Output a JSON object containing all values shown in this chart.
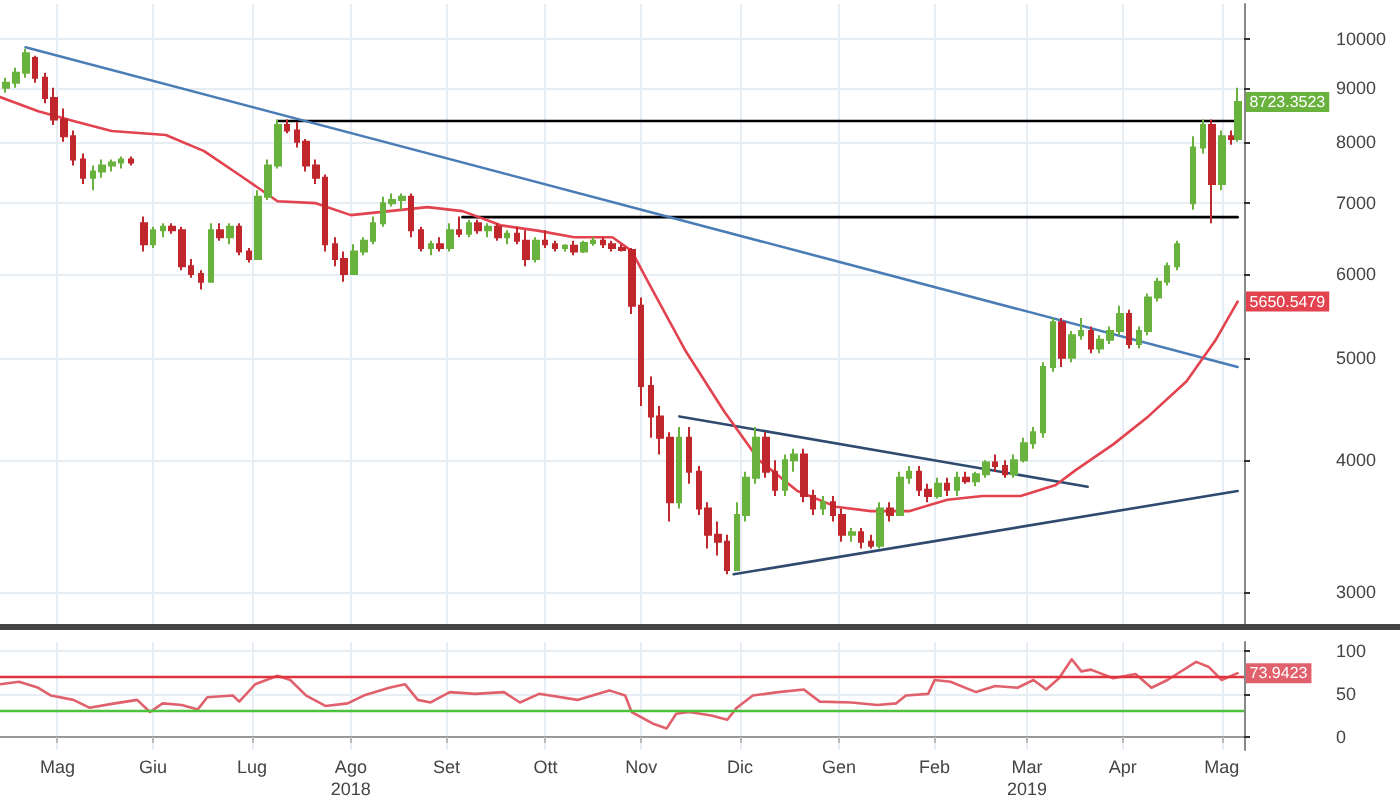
{
  "chart_data": [
    {
      "type": "candlestick",
      "x": [
        "2018-04-30",
        "2018-05-03",
        "2018-05-06",
        "2018-05-09",
        "2018-05-12",
        "2018-05-15",
        "2018-05-18",
        "2018-05-21",
        "2018-05-24",
        "2018-05-27",
        "2018-05-30",
        "2018-06-02",
        "2018-06-05",
        "2018-06-08",
        "2018-06-12",
        "2018-06-15",
        "2018-06-18",
        "2018-06-21",
        "2018-06-24",
        "2018-06-27",
        "2018-06-30",
        "2018-07-03",
        "2018-07-06",
        "2018-07-09",
        "2018-07-12",
        "2018-07-15",
        "2018-07-18",
        "2018-07-21",
        "2018-07-24",
        "2018-07-27",
        "2018-07-30",
        "2018-08-02",
        "2018-08-05",
        "2018-08-08",
        "2018-08-11",
        "2018-08-14",
        "2018-08-17",
        "2018-08-20",
        "2018-08-23",
        "2018-08-26",
        "2018-08-29",
        "2018-09-01",
        "2018-09-04",
        "2018-09-07",
        "2018-09-10",
        "2018-09-13",
        "2018-09-16",
        "2018-09-19",
        "2018-09-22",
        "2018-09-25",
        "2018-09-28",
        "2018-10-01",
        "2018-10-04",
        "2018-10-07",
        "2018-10-10",
        "2018-10-13",
        "2018-10-16",
        "2018-10-19",
        "2018-10-22",
        "2018-10-25",
        "2018-10-28",
        "2018-10-31",
        "2018-11-03",
        "2018-11-06",
        "2018-11-09",
        "2018-11-12",
        "2018-11-15",
        "2018-11-18",
        "2018-11-21",
        "2018-11-24",
        "2018-11-27",
        "2018-11-30",
        "2018-12-03",
        "2018-12-06",
        "2018-12-09",
        "2018-12-12",
        "2018-12-15",
        "2018-12-18",
        "2018-12-21",
        "2018-12-24",
        "2018-12-27",
        "2018-12-30",
        "2019-01-02",
        "2019-01-05",
        "2019-01-08",
        "2019-01-11",
        "2019-01-14",
        "2019-01-17",
        "2019-01-20",
        "2019-01-23",
        "2019-01-26",
        "2019-01-29",
        "2019-02-01",
        "2019-02-04",
        "2019-02-07",
        "2019-02-10",
        "2019-02-13",
        "2019-02-16",
        "2019-02-19",
        "2019-02-22",
        "2019-02-25",
        "2019-02-28",
        "2019-03-03",
        "2019-03-06",
        "2019-03-09",
        "2019-03-12",
        "2019-03-15",
        "2019-03-18",
        "2019-03-21",
        "2019-03-24",
        "2019-03-27",
        "2019-03-30",
        "2019-04-02",
        "2019-04-05",
        "2019-04-08",
        "2019-04-11",
        "2019-04-14",
        "2019-04-17",
        "2019-04-20",
        "2019-04-23",
        "2019-04-26",
        "2019-04-29",
        "2019-05-02",
        "2019-05-07",
        "2019-05-10",
        "2019-05-13",
        "2019-05-16",
        "2019-05-19",
        "2019-05-21"
      ],
      "ohlc": [
        [
          9000,
          9200,
          8900,
          9100
        ],
        [
          9100,
          9400,
          9000,
          9300
        ],
        [
          9300,
          9800,
          9200,
          9700
        ],
        [
          9600,
          9650,
          9100,
          9200
        ],
        [
          9200,
          9300,
          8700,
          8800
        ],
        [
          8800,
          9000,
          8300,
          8400
        ],
        [
          8400,
          8600,
          8000,
          8100
        ],
        [
          8100,
          8200,
          7600,
          7700
        ],
        [
          7700,
          7800,
          7300,
          7400
        ],
        [
          7400,
          7600,
          7200,
          7500
        ],
        [
          7500,
          7700,
          7400,
          7600
        ],
        [
          7600,
          7700,
          7500,
          7650
        ],
        [
          7650,
          7750,
          7550,
          7700
        ],
        [
          7700,
          7750,
          7600,
          7650
        ],
        [
          6700,
          6800,
          6300,
          6400
        ],
        [
          6400,
          6650,
          6350,
          6600
        ],
        [
          6600,
          6700,
          6500,
          6650
        ],
        [
          6650,
          6700,
          6550,
          6600
        ],
        [
          6600,
          6650,
          6050,
          6100
        ],
        [
          6100,
          6200,
          5950,
          6000
        ],
        [
          6000,
          6050,
          5800,
          5900
        ],
        [
          5900,
          6700,
          5900,
          6600
        ],
        [
          6600,
          6700,
          6450,
          6500
        ],
        [
          6500,
          6700,
          6400,
          6650
        ],
        [
          6650,
          6700,
          6250,
          6300
        ],
        [
          6300,
          6350,
          6150,
          6200
        ],
        [
          6200,
          7200,
          6200,
          7100
        ],
        [
          7100,
          7700,
          7050,
          7600
        ],
        [
          7600,
          8400,
          7550,
          8300
        ],
        [
          8300,
          8400,
          8150,
          8200
        ],
        [
          8200,
          8350,
          7900,
          8000
        ],
        [
          8000,
          8050,
          7500,
          7600
        ],
        [
          7600,
          7700,
          7300,
          7400
        ],
        [
          7400,
          7450,
          6300,
          6400
        ],
        [
          6400,
          6500,
          6100,
          6200
        ],
        [
          6200,
          6300,
          5900,
          6000
        ],
        [
          6000,
          6400,
          6000,
          6300
        ],
        [
          6300,
          6500,
          6250,
          6450
        ],
        [
          6450,
          6800,
          6400,
          6700
        ],
        [
          6700,
          7100,
          6650,
          7000
        ],
        [
          7000,
          7150,
          6950,
          7050
        ],
        [
          7050,
          7150,
          6900,
          7100
        ],
        [
          7100,
          7150,
          6500,
          6600
        ],
        [
          6600,
          6650,
          6300,
          6350
        ],
        [
          6350,
          6450,
          6250,
          6400
        ],
        [
          6400,
          6500,
          6300,
          6350
        ],
        [
          6350,
          6700,
          6300,
          6600
        ],
        [
          6600,
          6800,
          6500,
          6550
        ],
        [
          6550,
          6750,
          6500,
          6700
        ],
        [
          6700,
          6750,
          6550,
          6600
        ],
        [
          6600,
          6700,
          6500,
          6650
        ],
        [
          6650,
          6700,
          6450,
          6500
        ],
        [
          6500,
          6600,
          6400,
          6550
        ],
        [
          6550,
          6650,
          6400,
          6450
        ],
        [
          6450,
          6600,
          6100,
          6200
        ],
        [
          6200,
          6500,
          6150,
          6450
        ],
        [
          6450,
          6600,
          6350,
          6400
        ],
        [
          6400,
          6450,
          6300,
          6350
        ],
        [
          6350,
          6400,
          6300,
          6380
        ],
        [
          6380,
          6450,
          6250,
          6300
        ],
        [
          6300,
          6450,
          6280,
          6420
        ],
        [
          6420,
          6500,
          6380,
          6450
        ],
        [
          6450,
          6500,
          6350,
          6400
        ],
        [
          6400,
          6450,
          6300,
          6350
        ],
        [
          6350,
          6400,
          6300,
          6320
        ],
        [
          6320,
          6350,
          5500,
          5600
        ],
        [
          5600,
          5700,
          4500,
          4700
        ],
        [
          4700,
          4800,
          4200,
          4400
        ],
        [
          4400,
          4500,
          4050,
          4200
        ],
        [
          4200,
          4250,
          3500,
          3650
        ],
        [
          3650,
          4300,
          3600,
          4200
        ],
        [
          4200,
          4300,
          3800,
          3900
        ],
        [
          3900,
          3950,
          3550,
          3600
        ],
        [
          3600,
          3650,
          3300,
          3400
        ],
        [
          3400,
          3500,
          3250,
          3350
        ],
        [
          3350,
          3400,
          3120,
          3150
        ],
        [
          3150,
          3650,
          3150,
          3550
        ],
        [
          3550,
          3900,
          3500,
          3850
        ],
        [
          3850,
          4300,
          3800,
          4200
        ],
        [
          4200,
          4250,
          3850,
          3900
        ],
        [
          3900,
          4000,
          3700,
          3750
        ],
        [
          3750,
          4050,
          3700,
          4000
        ],
        [
          4000,
          4100,
          3900,
          4050
        ],
        [
          4050,
          4100,
          3650,
          3700
        ],
        [
          3700,
          3750,
          3550,
          3600
        ],
        [
          3600,
          3700,
          3550,
          3650
        ],
        [
          3650,
          3700,
          3500,
          3550
        ],
        [
          3550,
          3600,
          3350,
          3400
        ],
        [
          3400,
          3450,
          3350,
          3420
        ],
        [
          3420,
          3450,
          3300,
          3350
        ],
        [
          3350,
          3400,
          3300,
          3320
        ],
        [
          3320,
          3650,
          3300,
          3600
        ],
        [
          3600,
          3650,
          3500,
          3550
        ],
        [
          3550,
          3900,
          3550,
          3850
        ],
        [
          3850,
          3950,
          3800,
          3900
        ],
        [
          3900,
          3950,
          3700,
          3750
        ],
        [
          3750,
          3800,
          3650,
          3700
        ],
        [
          3700,
          3850,
          3680,
          3800
        ],
        [
          3800,
          3850,
          3700,
          3750
        ],
        [
          3750,
          3900,
          3700,
          3850
        ],
        [
          3850,
          3900,
          3800,
          3820
        ],
        [
          3820,
          3900,
          3780,
          3880
        ],
        [
          3880,
          4000,
          3850,
          3980
        ],
        [
          3980,
          4050,
          3900,
          3950
        ],
        [
          3950,
          4000,
          3850,
          3880
        ],
        [
          3880,
          4050,
          3850,
          4000
        ],
        [
          4000,
          4200,
          3980,
          4150
        ],
        [
          4150,
          4300,
          4100,
          4250
        ],
        [
          4250,
          4950,
          4200,
          4900
        ],
        [
          4900,
          5450,
          4850,
          5400
        ],
        [
          5400,
          5450,
          4900,
          5000
        ],
        [
          5000,
          5300,
          4950,
          5250
        ],
        [
          5250,
          5450,
          5200,
          5300
        ],
        [
          5300,
          5350,
          5050,
          5100
        ],
        [
          5100,
          5250,
          5050,
          5200
        ],
        [
          5200,
          5350,
          5150,
          5300
        ],
        [
          5300,
          5600,
          5250,
          5500
        ],
        [
          5500,
          5550,
          5100,
          5150
        ],
        [
          5150,
          5350,
          5100,
          5300
        ],
        [
          5300,
          5750,
          5250,
          5700
        ],
        [
          5700,
          5950,
          5650,
          5900
        ],
        [
          5900,
          6150,
          5850,
          6100
        ],
        [
          6100,
          6450,
          6050,
          6400
        ],
        [
          7000,
          8100,
          6900,
          7900
        ],
        [
          7900,
          8400,
          7800,
          8300
        ],
        [
          8300,
          8400,
          6700,
          7300
        ],
        [
          7300,
          8200,
          7200,
          8100
        ],
        [
          8100,
          8200,
          7950,
          8050
        ],
        [
          8050,
          9000,
          8000,
          8723.3523
        ]
      ],
      "colors": [
        "#6ab23e",
        "#6ab23e",
        "#6ab23e",
        "#c0272d",
        "#c0272d",
        "#c0272d",
        "#c0272d",
        "#c0272d",
        "#c0272d",
        "#6ab23e",
        "#6ab23e",
        "#6ab23e",
        "#6ab23e",
        "#c0272d",
        "#c0272d",
        "#6ab23e",
        "#6ab23e",
        "#c0272d",
        "#c0272d",
        "#c0272d",
        "#c0272d",
        "#6ab23e",
        "#c0272d",
        "#6ab23e",
        "#c0272d",
        "#c0272d",
        "#6ab23e",
        "#6ab23e",
        "#6ab23e",
        "#c0272d",
        "#c0272d",
        "#c0272d",
        "#c0272d",
        "#c0272d",
        "#c0272d",
        "#c0272d",
        "#6ab23e",
        "#6ab23e",
        "#6ab23e",
        "#6ab23e",
        "#6ab23e",
        "#6ab23e",
        "#c0272d",
        "#c0272d",
        "#6ab23e",
        "#c0272d",
        "#6ab23e",
        "#c0272d",
        "#6ab23e",
        "#c0272d",
        "#6ab23e",
        "#c0272d",
        "#6ab23e",
        "#c0272d",
        "#c0272d",
        "#6ab23e",
        "#c0272d",
        "#c0272d",
        "#6ab23e",
        "#c0272d",
        "#6ab23e",
        "#6ab23e",
        "#c0272d",
        "#c0272d",
        "#c0272d",
        "#c0272d",
        "#c0272d",
        "#c0272d",
        "#c0272d",
        "#c0272d",
        "#6ab23e",
        "#c0272d",
        "#c0272d",
        "#c0272d",
        "#c0272d",
        "#c0272d",
        "#6ab23e",
        "#6ab23e",
        "#6ab23e",
        "#c0272d",
        "#c0272d",
        "#6ab23e",
        "#6ab23e",
        "#c0272d",
        "#c0272d",
        "#6ab23e",
        "#c0272d",
        "#c0272d",
        "#6ab23e",
        "#c0272d",
        "#c0272d",
        "#6ab23e",
        "#c0272d",
        "#6ab23e",
        "#6ab23e",
        "#c0272d",
        "#c0272d",
        "#6ab23e",
        "#c0272d",
        "#6ab23e",
        "#c0272d",
        "#6ab23e",
        "#6ab23e",
        "#c0272d",
        "#c0272d",
        "#6ab23e",
        "#6ab23e",
        "#6ab23e",
        "#6ab23e",
        "#6ab23e",
        "#c0272d",
        "#6ab23e",
        "#6ab23e",
        "#c0272d",
        "#6ab23e",
        "#6ab23e",
        "#6ab23e",
        "#c0272d",
        "#6ab23e",
        "#6ab23e",
        "#6ab23e",
        "#6ab23e",
        "#6ab23e",
        "#6ab23e",
        "#6ab23e",
        "#c0272d",
        "#6ab23e",
        "#c0272d",
        "#6ab23e"
      ],
      "series": [
        {
          "type": "line",
          "color": "#e2434f",
          "x": [
            "2018-04-28",
            "2018-05-10",
            "2018-05-21",
            "2018-06-02",
            "2018-06-19",
            "2018-07-01",
            "2018-07-13",
            "2018-07-24",
            "2018-08-05",
            "2018-08-16",
            "2018-08-28",
            "2018-09-09",
            "2018-09-20",
            "2018-10-02",
            "2018-10-14",
            "2018-10-25",
            "2018-11-06",
            "2018-11-12",
            "2018-11-17",
            "2018-11-29",
            "2018-12-11",
            "2018-12-22",
            "2019-01-03",
            "2019-01-15",
            "2019-01-26",
            "2019-02-07",
            "2019-02-19",
            "2019-03-02",
            "2019-03-14",
            "2019-03-25",
            "2019-03-31",
            "2019-04-12",
            "2019-04-23",
            "2019-05-05",
            "2019-05-14",
            "2019-05-21"
          ],
          "values": [
            8820,
            8550,
            8370,
            8190,
            8120,
            7840,
            7410,
            7030,
            7000,
            6820,
            6880,
            6940,
            6880,
            6670,
            6590,
            6500,
            6500,
            6310,
            5910,
            5070,
            4450,
            4000,
            3740,
            3615,
            3580,
            3580,
            3670,
            3700,
            3700,
            3790,
            3910,
            4140,
            4400,
            4750,
            5190,
            5650.5479
          ]
        },
        {
          "type": "line",
          "color": "#4a7db5",
          "x": [
            "2018-05-06",
            "2019-05-21"
          ],
          "values": [
            9830,
            4900
          ]
        },
        {
          "type": "line",
          "color": "#2e4a6e",
          "x": [
            "2018-11-27",
            "2019-04-04"
          ],
          "values": [
            4400,
            3775
          ]
        },
        {
          "type": "line",
          "color": "#2e4a6e",
          "x": [
            "2018-12-14",
            "2019-05-21"
          ],
          "values": [
            3120,
            3740
          ]
        },
        {
          "type": "line",
          "color": "#000000",
          "x": [
            "2018-07-24",
            "2019-05-21"
          ],
          "values": [
            8370,
            8370
          ]
        },
        {
          "type": "line",
          "color": "#000000",
          "x": [
            "2018-09-20",
            "2019-05-21"
          ],
          "values": [
            6790,
            6790
          ]
        }
      ],
      "xlim": [
        "2018-04-28",
        "2019-05-23"
      ],
      "xticks": [
        {
          "value": "2018-05-16",
          "label": null
        },
        {
          "value": "2018-06-15",
          "label": null
        },
        {
          "value": "2018-07-16",
          "label": null
        },
        {
          "value": "2018-08-16",
          "label": null
        },
        {
          "value": "2018-09-15",
          "label": null
        },
        {
          "value": "2018-10-16",
          "label": null
        },
        {
          "value": "2018-11-15",
          "label": null
        },
        {
          "value": "2018-12-16",
          "label": null
        },
        {
          "value": "2019-01-16",
          "label": null
        },
        {
          "value": "2019-02-15",
          "label": null
        },
        {
          "value": "2019-03-16",
          "label": null
        },
        {
          "value": "2019-04-15",
          "label": null
        },
        {
          "value": "2019-05-16",
          "label": null
        }
      ],
      "ylim": [
        2800,
        10800
      ],
      "yticks": [
        3000,
        4000,
        5000,
        6000,
        7000,
        8000,
        9000,
        10000
      ],
      "log": true,
      "grid": true,
      "tick_labels": "y",
      "annotations": [
        {
          "text": "8723.3523",
          "x": "2019-05-21",
          "y": 8723.3523
        },
        {
          "text": "5650.5479",
          "x": "2019-05-21",
          "y": 5650.5479
        }
      ]
    },
    {
      "type": "line",
      "color": "#e0616b",
      "x": [
        "2018-04-28",
        "2018-05-04",
        "2018-05-10",
        "2018-05-14",
        "2018-05-21",
        "2018-05-26",
        "2018-06-03",
        "2018-06-10",
        "2018-06-14",
        "2018-06-18",
        "2018-06-24",
        "2018-06-29",
        "2018-07-02",
        "2018-07-10",
        "2018-07-12",
        "2018-07-17",
        "2018-07-24",
        "2018-07-28",
        "2018-08-02",
        "2018-08-08",
        "2018-08-15",
        "2018-08-20",
        "2018-08-28",
        "2018-09-02",
        "2018-09-06",
        "2018-09-10",
        "2018-09-16",
        "2018-09-24",
        "2018-10-03",
        "2018-10-08",
        "2018-10-14",
        "2018-10-26",
        "2018-11-05",
        "2018-11-10",
        "2018-11-12",
        "2018-11-19",
        "2018-11-23",
        "2018-11-26",
        "2018-11-30",
        "2018-12-07",
        "2018-12-12",
        "2018-12-15",
        "2018-12-20",
        "2018-12-28",
        "2019-01-05",
        "2019-01-10",
        "2019-01-20",
        "2019-01-28",
        "2019-02-03",
        "2019-02-06",
        "2019-02-13",
        "2019-02-15",
        "2019-02-20",
        "2019-02-28",
        "2019-03-06",
        "2019-03-13",
        "2019-03-18",
        "2019-03-22",
        "2019-03-26",
        "2019-03-30",
        "2019-04-02",
        "2019-04-05",
        "2019-04-12",
        "2019-04-19",
        "2019-04-24",
        "2019-04-29",
        "2019-05-08",
        "2019-05-12",
        "2019-05-16",
        "2019-05-21"
      ],
      "values": [
        61,
        64,
        57,
        48,
        43,
        34,
        39,
        43,
        29,
        39,
        37,
        32,
        46,
        48,
        41,
        61,
        71,
        66,
        48,
        36,
        39,
        48,
        57,
        61,
        43,
        40,
        52,
        50,
        52,
        40,
        50,
        43,
        54,
        48,
        29,
        15,
        10,
        27,
        29,
        25,
        20,
        34,
        48,
        52,
        55,
        41,
        40,
        37,
        39,
        48,
        50,
        66,
        64,
        52,
        59,
        57,
        66,
        55,
        68,
        90,
        76,
        78,
        68,
        73,
        57,
        66,
        87,
        81,
        66,
        73.9423
      ],
      "xlim": [
        "2018-04-28",
        "2019-05-23"
      ],
      "xticks": [
        {
          "value": "2018-05-16",
          "label": "Mag"
        },
        {
          "value": "2018-06-15",
          "label": "Giu"
        },
        {
          "value": "2018-07-16",
          "label": "Lug"
        },
        {
          "value": "2018-08-16",
          "label": "Ago\n2018"
        },
        {
          "value": "2018-09-15",
          "label": "Set"
        },
        {
          "value": "2018-10-16",
          "label": "Ott"
        },
        {
          "value": "2018-11-15",
          "label": "Nov"
        },
        {
          "value": "2018-12-16",
          "label": "Dic"
        },
        {
          "value": "2019-01-16",
          "label": "Gen"
        },
        {
          "value": "2019-02-15",
          "label": "Feb"
        },
        {
          "value": "2019-03-16",
          "label": "Mar\n2019"
        },
        {
          "value": "2019-04-15",
          "label": "Apr"
        },
        {
          "value": "2019-05-16",
          "label": "Mag"
        }
      ],
      "ylim": [
        -15,
        110
      ],
      "yticks": [
        0,
        50,
        100
      ],
      "grid": true,
      "ref_lines": [
        {
          "axis": "y",
          "value": 70,
          "color": "#e0343e"
        },
        {
          "axis": "y",
          "value": 30,
          "color": "#4cc13c"
        }
      ],
      "annotations": [
        {
          "text": "73.9423",
          "x": "2019-05-21",
          "y": 73.9423
        }
      ]
    }
  ]
}
